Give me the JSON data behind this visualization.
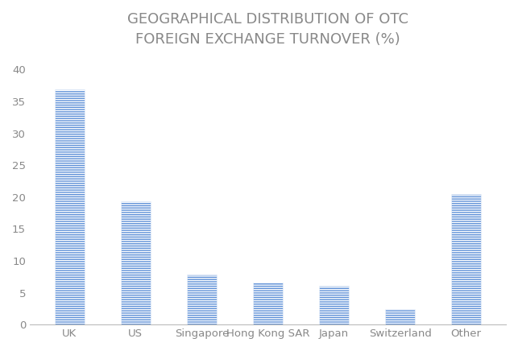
{
  "title": "GEOGRAPHICAL DISTRIBUTION OF OTC\nFOREIGN EXCHANGE TURNOVER (%)",
  "categories": [
    "UK",
    "US",
    "Singapore",
    "Hong Kong SAR",
    "Japan",
    "Switzerland",
    "Other"
  ],
  "values": [
    36.9,
    19.4,
    7.9,
    6.6,
    6.1,
    2.4,
    20.5
  ],
  "bar_color": "#5B8ED6",
  "hatch_pattern": "------",
  "ylim": [
    0,
    42
  ],
  "yticks": [
    0,
    5,
    10,
    15,
    20,
    25,
    30,
    35,
    40
  ],
  "title_fontsize": 13,
  "tick_fontsize": 9.5,
  "background_color": "#ffffff",
  "title_color": "#888888",
  "bar_width": 0.45
}
